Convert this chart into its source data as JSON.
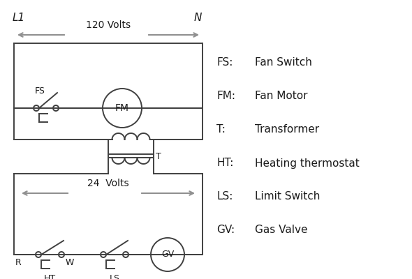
{
  "bg_color": "#ffffff",
  "line_color": "#404040",
  "arrow_color": "#909090",
  "text_color": "#1a1a1a",
  "legend": [
    [
      "FS:",
      "Fan Switch"
    ],
    [
      "FM:",
      "Fan Motor"
    ],
    [
      "T:",
      "Transformer"
    ],
    [
      "HT:",
      "Heating thermostat"
    ],
    [
      "LS:",
      "Limit Switch"
    ],
    [
      "GV:",
      "Gas Valve"
    ]
  ]
}
